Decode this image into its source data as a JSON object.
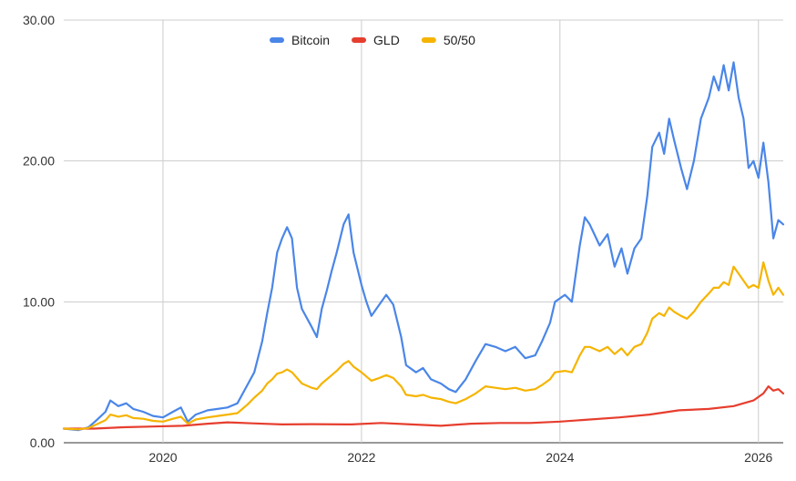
{
  "chart_data": {
    "type": "line",
    "xlim": [
      2019.0,
      2026.25
    ],
    "ylim": [
      0,
      30
    ],
    "y_ticks": [
      {
        "value": 0,
        "label": "0.00"
      },
      {
        "value": 10,
        "label": "10.00"
      },
      {
        "value": 20,
        "label": "20.00"
      },
      {
        "value": 30,
        "label": "30.00"
      }
    ],
    "x_ticks": [
      {
        "value": 2020,
        "label": "2020"
      },
      {
        "value": 2022,
        "label": "2022"
      },
      {
        "value": 2024,
        "label": "2024"
      },
      {
        "value": 2026,
        "label": "2026"
      }
    ],
    "grid": true,
    "legend_position": "top-center",
    "series": [
      {
        "name": "Bitcoin",
        "color": "#4a86e8",
        "points": [
          [
            2019.0,
            1.0
          ],
          [
            2019.15,
            0.9
          ],
          [
            2019.25,
            1.1
          ],
          [
            2019.33,
            1.6
          ],
          [
            2019.42,
            2.2
          ],
          [
            2019.47,
            3.0
          ],
          [
            2019.55,
            2.6
          ],
          [
            2019.63,
            2.8
          ],
          [
            2019.7,
            2.4
          ],
          [
            2019.8,
            2.2
          ],
          [
            2019.9,
            1.9
          ],
          [
            2020.0,
            1.8
          ],
          [
            2020.1,
            2.2
          ],
          [
            2020.18,
            2.5
          ],
          [
            2020.25,
            1.5
          ],
          [
            2020.33,
            2.0
          ],
          [
            2020.45,
            2.3
          ],
          [
            2020.55,
            2.4
          ],
          [
            2020.65,
            2.5
          ],
          [
            2020.75,
            2.8
          ],
          [
            2020.85,
            4.1
          ],
          [
            2020.92,
            5.0
          ],
          [
            2021.0,
            7.2
          ],
          [
            2021.05,
            9.2
          ],
          [
            2021.1,
            11.0
          ],
          [
            2021.15,
            13.5
          ],
          [
            2021.2,
            14.5
          ],
          [
            2021.25,
            15.3
          ],
          [
            2021.3,
            14.5
          ],
          [
            2021.35,
            11.0
          ],
          [
            2021.4,
            9.5
          ],
          [
            2021.5,
            8.2
          ],
          [
            2021.55,
            7.5
          ],
          [
            2021.6,
            9.5
          ],
          [
            2021.65,
            10.8
          ],
          [
            2021.7,
            12.2
          ],
          [
            2021.75,
            13.5
          ],
          [
            2021.82,
            15.5
          ],
          [
            2021.87,
            16.2
          ],
          [
            2021.92,
            13.5
          ],
          [
            2022.0,
            11.2
          ],
          [
            2022.05,
            10.0
          ],
          [
            2022.1,
            9.0
          ],
          [
            2022.18,
            9.8
          ],
          [
            2022.25,
            10.5
          ],
          [
            2022.32,
            9.8
          ],
          [
            2022.4,
            7.5
          ],
          [
            2022.45,
            5.5
          ],
          [
            2022.55,
            5.0
          ],
          [
            2022.62,
            5.3
          ],
          [
            2022.7,
            4.5
          ],
          [
            2022.8,
            4.2
          ],
          [
            2022.88,
            3.8
          ],
          [
            2022.95,
            3.6
          ],
          [
            2023.05,
            4.5
          ],
          [
            2023.15,
            5.8
          ],
          [
            2023.25,
            7.0
          ],
          [
            2023.35,
            6.8
          ],
          [
            2023.45,
            6.5
          ],
          [
            2023.55,
            6.8
          ],
          [
            2023.65,
            6.0
          ],
          [
            2023.75,
            6.2
          ],
          [
            2023.82,
            7.2
          ],
          [
            2023.9,
            8.5
          ],
          [
            2023.95,
            10.0
          ],
          [
            2024.05,
            10.5
          ],
          [
            2024.12,
            10.0
          ],
          [
            2024.2,
            14.0
          ],
          [
            2024.25,
            16.0
          ],
          [
            2024.3,
            15.5
          ],
          [
            2024.4,
            14.0
          ],
          [
            2024.48,
            14.8
          ],
          [
            2024.55,
            12.5
          ],
          [
            2024.62,
            13.8
          ],
          [
            2024.68,
            12.0
          ],
          [
            2024.75,
            13.8
          ],
          [
            2024.82,
            14.5
          ],
          [
            2024.88,
            17.5
          ],
          [
            2024.93,
            21.0
          ],
          [
            2025.0,
            22.0
          ],
          [
            2025.05,
            20.5
          ],
          [
            2025.1,
            23.0
          ],
          [
            2025.15,
            21.5
          ],
          [
            2025.22,
            19.5
          ],
          [
            2025.28,
            18.0
          ],
          [
            2025.35,
            20.0
          ],
          [
            2025.42,
            23.0
          ],
          [
            2025.5,
            24.5
          ],
          [
            2025.55,
            26.0
          ],
          [
            2025.6,
            25.0
          ],
          [
            2025.65,
            26.8
          ],
          [
            2025.7,
            25.0
          ],
          [
            2025.75,
            27.0
          ],
          [
            2025.8,
            24.5
          ],
          [
            2025.85,
            23.0
          ],
          [
            2025.9,
            19.5
          ],
          [
            2025.95,
            20.0
          ],
          [
            2026.0,
            18.8
          ],
          [
            2026.05,
            21.3
          ],
          [
            2026.1,
            18.5
          ],
          [
            2026.15,
            14.5
          ],
          [
            2026.2,
            15.8
          ],
          [
            2026.25,
            15.5
          ]
        ]
      },
      {
        "name": "GLD",
        "color": "#e63e2e",
        "points": [
          [
            2019.0,
            1.0
          ],
          [
            2019.3,
            1.0
          ],
          [
            2019.6,
            1.1
          ],
          [
            2019.9,
            1.15
          ],
          [
            2020.2,
            1.2
          ],
          [
            2020.45,
            1.35
          ],
          [
            2020.65,
            1.45
          ],
          [
            2020.9,
            1.38
          ],
          [
            2021.2,
            1.3
          ],
          [
            2021.5,
            1.32
          ],
          [
            2021.9,
            1.3
          ],
          [
            2022.2,
            1.4
          ],
          [
            2022.5,
            1.3
          ],
          [
            2022.8,
            1.2
          ],
          [
            2023.1,
            1.35
          ],
          [
            2023.4,
            1.4
          ],
          [
            2023.7,
            1.4
          ],
          [
            2024.0,
            1.5
          ],
          [
            2024.3,
            1.65
          ],
          [
            2024.6,
            1.8
          ],
          [
            2024.9,
            2.0
          ],
          [
            2025.2,
            2.3
          ],
          [
            2025.5,
            2.4
          ],
          [
            2025.75,
            2.6
          ],
          [
            2025.95,
            3.0
          ],
          [
            2026.05,
            3.5
          ],
          [
            2026.1,
            4.0
          ],
          [
            2026.15,
            3.7
          ],
          [
            2026.2,
            3.8
          ],
          [
            2026.25,
            3.5
          ]
        ]
      },
      {
        "name": "50/50",
        "color": "#f6b400",
        "points": [
          [
            2019.0,
            1.0
          ],
          [
            2019.15,
            0.95
          ],
          [
            2019.25,
            1.05
          ],
          [
            2019.33,
            1.3
          ],
          [
            2019.42,
            1.6
          ],
          [
            2019.47,
            2.0
          ],
          [
            2019.55,
            1.85
          ],
          [
            2019.63,
            1.95
          ],
          [
            2019.7,
            1.75
          ],
          [
            2019.8,
            1.7
          ],
          [
            2019.9,
            1.55
          ],
          [
            2020.0,
            1.5
          ],
          [
            2020.1,
            1.7
          ],
          [
            2020.18,
            1.85
          ],
          [
            2020.25,
            1.35
          ],
          [
            2020.33,
            1.65
          ],
          [
            2020.45,
            1.8
          ],
          [
            2020.55,
            1.9
          ],
          [
            2020.65,
            2.0
          ],
          [
            2020.75,
            2.1
          ],
          [
            2020.85,
            2.7
          ],
          [
            2020.92,
            3.2
          ],
          [
            2021.0,
            3.7
          ],
          [
            2021.05,
            4.2
          ],
          [
            2021.1,
            4.5
          ],
          [
            2021.15,
            4.9
          ],
          [
            2021.2,
            5.0
          ],
          [
            2021.25,
            5.2
          ],
          [
            2021.3,
            5.0
          ],
          [
            2021.35,
            4.6
          ],
          [
            2021.4,
            4.2
          ],
          [
            2021.5,
            3.9
          ],
          [
            2021.55,
            3.8
          ],
          [
            2021.6,
            4.2
          ],
          [
            2021.65,
            4.5
          ],
          [
            2021.7,
            4.8
          ],
          [
            2021.75,
            5.1
          ],
          [
            2021.82,
            5.6
          ],
          [
            2021.87,
            5.8
          ],
          [
            2021.92,
            5.4
          ],
          [
            2022.0,
            5.0
          ],
          [
            2022.05,
            4.7
          ],
          [
            2022.1,
            4.4
          ],
          [
            2022.18,
            4.6
          ],
          [
            2022.25,
            4.8
          ],
          [
            2022.32,
            4.6
          ],
          [
            2022.4,
            4.0
          ],
          [
            2022.45,
            3.4
          ],
          [
            2022.55,
            3.3
          ],
          [
            2022.62,
            3.4
          ],
          [
            2022.7,
            3.2
          ],
          [
            2022.8,
            3.1
          ],
          [
            2022.88,
            2.9
          ],
          [
            2022.95,
            2.8
          ],
          [
            2023.05,
            3.1
          ],
          [
            2023.15,
            3.5
          ],
          [
            2023.25,
            4.0
          ],
          [
            2023.35,
            3.9
          ],
          [
            2023.45,
            3.8
          ],
          [
            2023.55,
            3.9
          ],
          [
            2023.65,
            3.7
          ],
          [
            2023.75,
            3.8
          ],
          [
            2023.82,
            4.1
          ],
          [
            2023.9,
            4.5
          ],
          [
            2023.95,
            5.0
          ],
          [
            2024.05,
            5.1
          ],
          [
            2024.12,
            5.0
          ],
          [
            2024.2,
            6.2
          ],
          [
            2024.25,
            6.8
          ],
          [
            2024.3,
            6.8
          ],
          [
            2024.4,
            6.5
          ],
          [
            2024.48,
            6.8
          ],
          [
            2024.55,
            6.3
          ],
          [
            2024.62,
            6.7
          ],
          [
            2024.68,
            6.2
          ],
          [
            2024.75,
            6.8
          ],
          [
            2024.82,
            7.0
          ],
          [
            2024.88,
            7.8
          ],
          [
            2024.93,
            8.8
          ],
          [
            2025.0,
            9.2
          ],
          [
            2025.05,
            9.0
          ],
          [
            2025.1,
            9.6
          ],
          [
            2025.15,
            9.3
          ],
          [
            2025.22,
            9.0
          ],
          [
            2025.28,
            8.8
          ],
          [
            2025.35,
            9.3
          ],
          [
            2025.42,
            10.0
          ],
          [
            2025.5,
            10.6
          ],
          [
            2025.55,
            11.0
          ],
          [
            2025.6,
            11.0
          ],
          [
            2025.65,
            11.4
          ],
          [
            2025.7,
            11.2
          ],
          [
            2025.75,
            12.5
          ],
          [
            2025.8,
            12.0
          ],
          [
            2025.85,
            11.5
          ],
          [
            2025.9,
            11.0
          ],
          [
            2025.95,
            11.2
          ],
          [
            2026.0,
            11.0
          ],
          [
            2026.05,
            12.8
          ],
          [
            2026.1,
            11.5
          ],
          [
            2026.15,
            10.5
          ],
          [
            2026.2,
            11.0
          ],
          [
            2026.25,
            10.5
          ]
        ]
      }
    ]
  }
}
